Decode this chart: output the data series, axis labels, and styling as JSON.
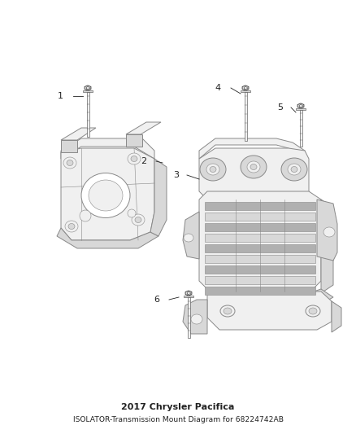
{
  "title": "2017 Chrysler Pacifica",
  "subtitle": "ISOLATOR-Transmission Mount Diagram for 68224742AB",
  "background_color": "#ffffff",
  "fig_width": 4.38,
  "fig_height": 5.33,
  "dpi": 100,
  "line_color": "#888888",
  "dark_line": "#444444",
  "fill_light": "#f0f0f0",
  "fill_mid": "#d8d8d8",
  "fill_dark": "#b0b0b0",
  "label_fontsize": 8,
  "title_fontsize": 8
}
